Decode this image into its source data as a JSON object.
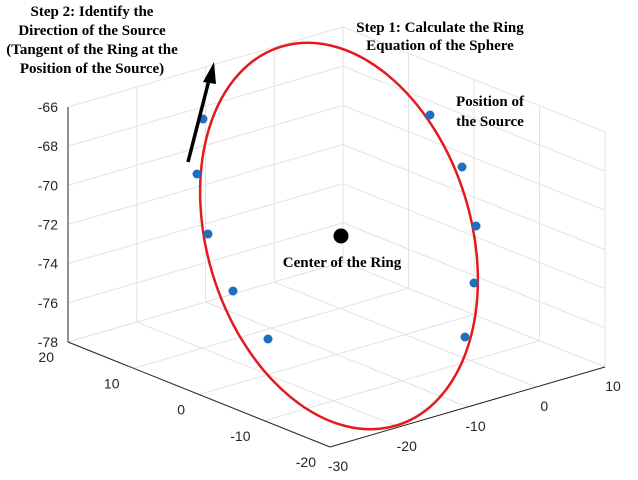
{
  "annotations": {
    "step2": [
      "Step 2: Identify the",
      "Direction of the Source",
      "(Tangent of the Ring at the",
      "Position of the Source)"
    ],
    "step1": [
      "Step 1: Calculate the Ring",
      "Equation of the Sphere"
    ],
    "position": [
      "Position of",
      "the Source"
    ],
    "center": "Center of the Ring"
  },
  "axes": {
    "z_ticks": [
      -66,
      -68,
      -70,
      -72,
      -74,
      -76,
      -78
    ],
    "y_ticks": [
      20,
      10,
      0,
      -10,
      -20
    ],
    "x_ticks": [
      -30,
      -20,
      -10,
      0,
      10
    ]
  }
}
